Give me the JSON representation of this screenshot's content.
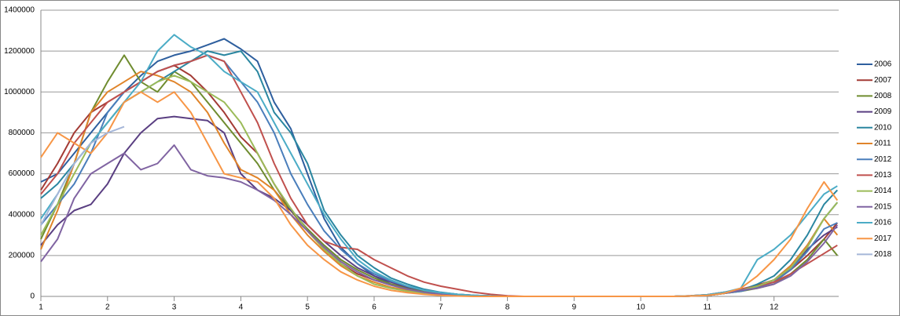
{
  "chart_data": {
    "type": "line",
    "x": [
      1,
      1.25,
      1.5,
      1.75,
      2,
      2.25,
      2.5,
      2.75,
      3,
      3.25,
      3.5,
      3.75,
      4,
      4.25,
      4.5,
      4.75,
      5,
      5.25,
      5.5,
      5.75,
      6,
      6.25,
      6.5,
      6.75,
      7,
      7.25,
      7.5,
      7.75,
      8,
      8.25,
      8.5,
      8.75,
      9,
      9.25,
      9.5,
      9.75,
      10,
      10.25,
      10.5,
      10.75,
      11,
      11.25,
      11.5,
      11.75,
      12,
      12.25,
      12.5,
      12.75,
      12.95
    ],
    "xlim": [
      1,
      12.97
    ],
    "xticks": [
      1,
      2,
      3,
      4,
      5,
      6,
      7,
      8,
      9,
      10,
      11,
      12
    ],
    "ylim": [
      0,
      1400000
    ],
    "yticks": [
      0,
      200000,
      400000,
      600000,
      800000,
      1000000,
      1200000,
      1400000
    ],
    "grid": true,
    "legend": "right",
    "series": [
      {
        "name": "2006",
        "color": "#2e5f9e",
        "values": [
          560000,
          600000,
          700000,
          800000,
          900000,
          1000000,
          1080000,
          1150000,
          1180000,
          1200000,
          1230000,
          1260000,
          1210000,
          1150000,
          950000,
          820000,
          600000,
          380000,
          240000,
          160000,
          100000,
          60000,
          40000,
          25000,
          15000,
          8000,
          4000,
          2000,
          0,
          0,
          0,
          0,
          0,
          0,
          0,
          0,
          0,
          0,
          0,
          2000,
          5000,
          15000,
          30000,
          50000,
          80000,
          150000,
          250000,
          380000,
          460000
        ]
      },
      {
        "name": "2007",
        "color": "#a33b35",
        "values": [
          520000,
          650000,
          800000,
          900000,
          950000,
          1000000,
          1050000,
          1100000,
          1130000,
          1080000,
          1000000,
          900000,
          780000,
          700000,
          550000,
          420000,
          320000,
          230000,
          160000,
          110000,
          80000,
          60000,
          40000,
          25000,
          15000,
          8000,
          4000,
          2000,
          0,
          0,
          0,
          0,
          0,
          0,
          0,
          0,
          0,
          0,
          0,
          3000,
          8000,
          20000,
          35000,
          55000,
          80000,
          130000,
          200000,
          280000,
          360000
        ]
      },
      {
        "name": "2008",
        "color": "#6f8c2f",
        "values": [
          280000,
          450000,
          650000,
          900000,
          1050000,
          1180000,
          1050000,
          1000000,
          1100000,
          1050000,
          950000,
          850000,
          750000,
          650000,
          520000,
          420000,
          330000,
          250000,
          180000,
          130000,
          90000,
          60000,
          40000,
          25000,
          15000,
          8000,
          4000,
          2000,
          0,
          0,
          0,
          0,
          0,
          0,
          0,
          0,
          0,
          0,
          0,
          2000,
          5000,
          15000,
          25000,
          40000,
          60000,
          110000,
          180000,
          280000,
          200000
        ]
      },
      {
        "name": "2009",
        "color": "#5a3f82",
        "values": [
          250000,
          350000,
          420000,
          450000,
          550000,
          700000,
          800000,
          870000,
          880000,
          870000,
          860000,
          800000,
          600000,
          520000,
          480000,
          420000,
          350000,
          270000,
          200000,
          140000,
          100000,
          70000,
          45000,
          30000,
          18000,
          10000,
          5000,
          2000,
          0,
          0,
          0,
          0,
          0,
          0,
          0,
          0,
          0,
          0,
          0,
          2000,
          5000,
          15000,
          30000,
          50000,
          80000,
          140000,
          230000,
          300000,
          340000
        ]
      },
      {
        "name": "2010",
        "color": "#2a86a0",
        "values": [
          480000,
          550000,
          650000,
          750000,
          850000,
          950000,
          1000000,
          1050000,
          1100000,
          1150000,
          1200000,
          1180000,
          1200000,
          1100000,
          900000,
          800000,
          650000,
          420000,
          300000,
          200000,
          140000,
          90000,
          60000,
          35000,
          20000,
          10000,
          5000,
          2000,
          0,
          0,
          0,
          0,
          0,
          0,
          0,
          0,
          0,
          0,
          0,
          2000,
          5000,
          15000,
          30000,
          60000,
          100000,
          180000,
          300000,
          450000,
          520000
        ]
      },
      {
        "name": "2011",
        "color": "#e0842a",
        "values": [
          230000,
          420000,
          650000,
          900000,
          1000000,
          1050000,
          1100000,
          1080000,
          1050000,
          1000000,
          900000,
          750000,
          620000,
          580000,
          520000,
          400000,
          300000,
          220000,
          150000,
          100000,
          70000,
          45000,
          30000,
          18000,
          10000,
          5000,
          2000,
          0,
          0,
          0,
          0,
          0,
          0,
          0,
          0,
          0,
          0,
          0,
          0,
          2000,
          5000,
          15000,
          30000,
          50000,
          80000,
          150000,
          250000,
          380000,
          300000
        ]
      },
      {
        "name": "2012",
        "color": "#4a7ebb",
        "values": [
          350000,
          450000,
          550000,
          700000,
          900000,
          1000000,
          1050000,
          1100000,
          1130000,
          1150000,
          1180000,
          1150000,
          1050000,
          950000,
          800000,
          600000,
          450000,
          320000,
          230000,
          160000,
          110000,
          75000,
          50000,
          30000,
          18000,
          10000,
          5000,
          2000,
          0,
          0,
          0,
          0,
          0,
          0,
          0,
          0,
          0,
          0,
          0,
          2000,
          5000,
          15000,
          25000,
          45000,
          70000,
          130000,
          220000,
          330000,
          360000
        ]
      },
      {
        "name": "2013",
        "color": "#c0504d",
        "values": [
          500000,
          600000,
          750000,
          850000,
          950000,
          1000000,
          1050000,
          1100000,
          1130000,
          1150000,
          1180000,
          1150000,
          1000000,
          850000,
          650000,
          480000,
          350000,
          270000,
          240000,
          230000,
          180000,
          140000,
          100000,
          70000,
          50000,
          35000,
          20000,
          10000,
          3000,
          0,
          0,
          0,
          0,
          0,
          0,
          0,
          0,
          0,
          0,
          3000,
          8000,
          20000,
          35000,
          50000,
          70000,
          110000,
          160000,
          210000,
          250000
        ]
      },
      {
        "name": "2014",
        "color": "#9bbb59",
        "values": [
          300000,
          450000,
          600000,
          750000,
          850000,
          950000,
          1000000,
          1050000,
          1080000,
          1050000,
          1000000,
          950000,
          850000,
          700000,
          550000,
          430000,
          320000,
          230000,
          160000,
          100000,
          60000,
          40000,
          25000,
          15000,
          8000,
          4000,
          2000,
          0,
          0,
          0,
          0,
          0,
          0,
          0,
          0,
          0,
          0,
          0,
          0,
          2000,
          5000,
          15000,
          30000,
          50000,
          80000,
          140000,
          240000,
          380000,
          460000
        ]
      },
      {
        "name": "2015",
        "color": "#8064a2",
        "values": [
          170000,
          280000,
          480000,
          600000,
          650000,
          700000,
          620000,
          650000,
          740000,
          620000,
          590000,
          580000,
          560000,
          520000,
          470000,
          400000,
          320000,
          240000,
          170000,
          120000,
          80000,
          55000,
          35000,
          20000,
          10000,
          5000,
          2000,
          0,
          0,
          0,
          0,
          0,
          0,
          0,
          0,
          0,
          0,
          0,
          0,
          2000,
          5000,
          15000,
          30000,
          40000,
          60000,
          100000,
          170000,
          260000,
          350000
        ]
      },
      {
        "name": "2016",
        "color": "#4bacc6",
        "values": [
          380000,
          500000,
          650000,
          750000,
          850000,
          950000,
          1050000,
          1200000,
          1280000,
          1220000,
          1180000,
          1100000,
          1050000,
          1000000,
          850000,
          700000,
          550000,
          400000,
          280000,
          180000,
          120000,
          80000,
          50000,
          30000,
          18000,
          10000,
          5000,
          2000,
          0,
          0,
          0,
          0,
          0,
          0,
          0,
          0,
          0,
          0,
          0,
          3000,
          8000,
          20000,
          40000,
          180000,
          230000,
          300000,
          400000,
          500000,
          540000
        ]
      },
      {
        "name": "2017",
        "color": "#f79646",
        "values": [
          680000,
          800000,
          750000,
          700000,
          800000,
          950000,
          1000000,
          950000,
          1000000,
          900000,
          750000,
          600000,
          580000,
          560000,
          480000,
          350000,
          250000,
          180000,
          120000,
          80000,
          50000,
          30000,
          18000,
          10000,
          5000,
          2000,
          0,
          0,
          0,
          0,
          0,
          0,
          0,
          0,
          0,
          0,
          0,
          0,
          0,
          2000,
          5000,
          15000,
          40000,
          100000,
          180000,
          280000,
          430000,
          560000,
          470000
        ]
      },
      {
        "name": "2018",
        "color": "#a5b6d8",
        "values": [
          350000,
          500000,
          650000,
          750000,
          800000,
          830000,
          null,
          null,
          null,
          null,
          null,
          null,
          null,
          null,
          null,
          null,
          null,
          null,
          null,
          null,
          null,
          null,
          null,
          null,
          null,
          null,
          null,
          null,
          null,
          null,
          null,
          null,
          null,
          null,
          null,
          null,
          null,
          null,
          null,
          null,
          null,
          null,
          null,
          null,
          null,
          null,
          null,
          null,
          null
        ]
      }
    ]
  }
}
